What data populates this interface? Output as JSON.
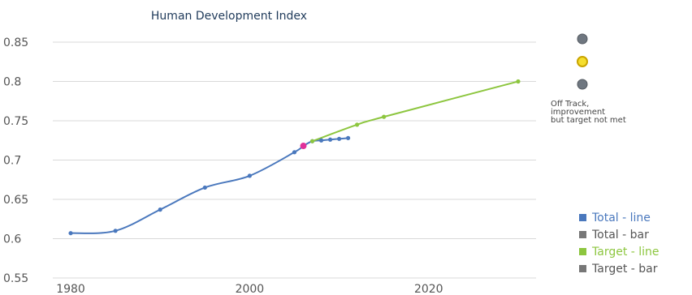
{
  "chart_data": {
    "type": "line",
    "title": "Human Development Index",
    "xlabel": "",
    "ylabel": "",
    "xlim": [
      1978,
      2032
    ],
    "ylim": [
      0.55,
      0.85
    ],
    "x_ticks": [
      {
        "value": 1980,
        "label": "1980"
      },
      {
        "value": 2000,
        "label": "2000"
      },
      {
        "value": 2020,
        "label": "2020"
      }
    ],
    "y_ticks": [
      {
        "value": 0.55,
        "label": "0.55"
      },
      {
        "value": 0.6,
        "label": "0.6"
      },
      {
        "value": 0.65,
        "label": "0.65"
      },
      {
        "value": 0.7,
        "label": "0.7"
      },
      {
        "value": 0.75,
        "label": "0.75"
      },
      {
        "value": 0.8,
        "label": "0.8"
      },
      {
        "value": 0.85,
        "label": "0.85"
      }
    ],
    "grid": true,
    "legend_position": "bottom-right",
    "series": [
      {
        "name": "Total - line",
        "color": "#4a78bd",
        "points": [
          {
            "x": 1980,
            "y": 0.607
          },
          {
            "x": 1985,
            "y": 0.61
          },
          {
            "x": 1990,
            "y": 0.637
          },
          {
            "x": 1995,
            "y": 0.665
          },
          {
            "x": 2000,
            "y": 0.68
          },
          {
            "x": 2005,
            "y": 0.71
          },
          {
            "x": 2006,
            "y": 0.718
          },
          {
            "x": 2007,
            "y": 0.724
          },
          {
            "x": 2008,
            "y": 0.725
          },
          {
            "x": 2009,
            "y": 0.726
          },
          {
            "x": 2010,
            "y": 0.727
          },
          {
            "x": 2011,
            "y": 0.728
          }
        ]
      },
      {
        "name": "Total - bar",
        "color": "#777777",
        "points": []
      },
      {
        "name": "Target - line",
        "color": "#8dc63f",
        "points": [
          {
            "x": 2007,
            "y": 0.724
          },
          {
            "x": 2012,
            "y": 0.745
          },
          {
            "x": 2015,
            "y": 0.755
          },
          {
            "x": 2030,
            "y": 0.8
          }
        ]
      },
      {
        "name": "Target - bar",
        "color": "#777777",
        "points": []
      }
    ],
    "highlight_points": [
      {
        "x": 2006,
        "y": 0.718,
        "color": "#e0309a"
      }
    ],
    "status_indicator": {
      "lights": [
        {
          "color": "#6f7780",
          "active": false
        },
        {
          "color": "#f5de2e",
          "active": true
        },
        {
          "color": "#6f7780",
          "active": false
        }
      ],
      "label_lines": [
        "Off Track,",
        "improvement",
        "but target not met"
      ]
    }
  }
}
